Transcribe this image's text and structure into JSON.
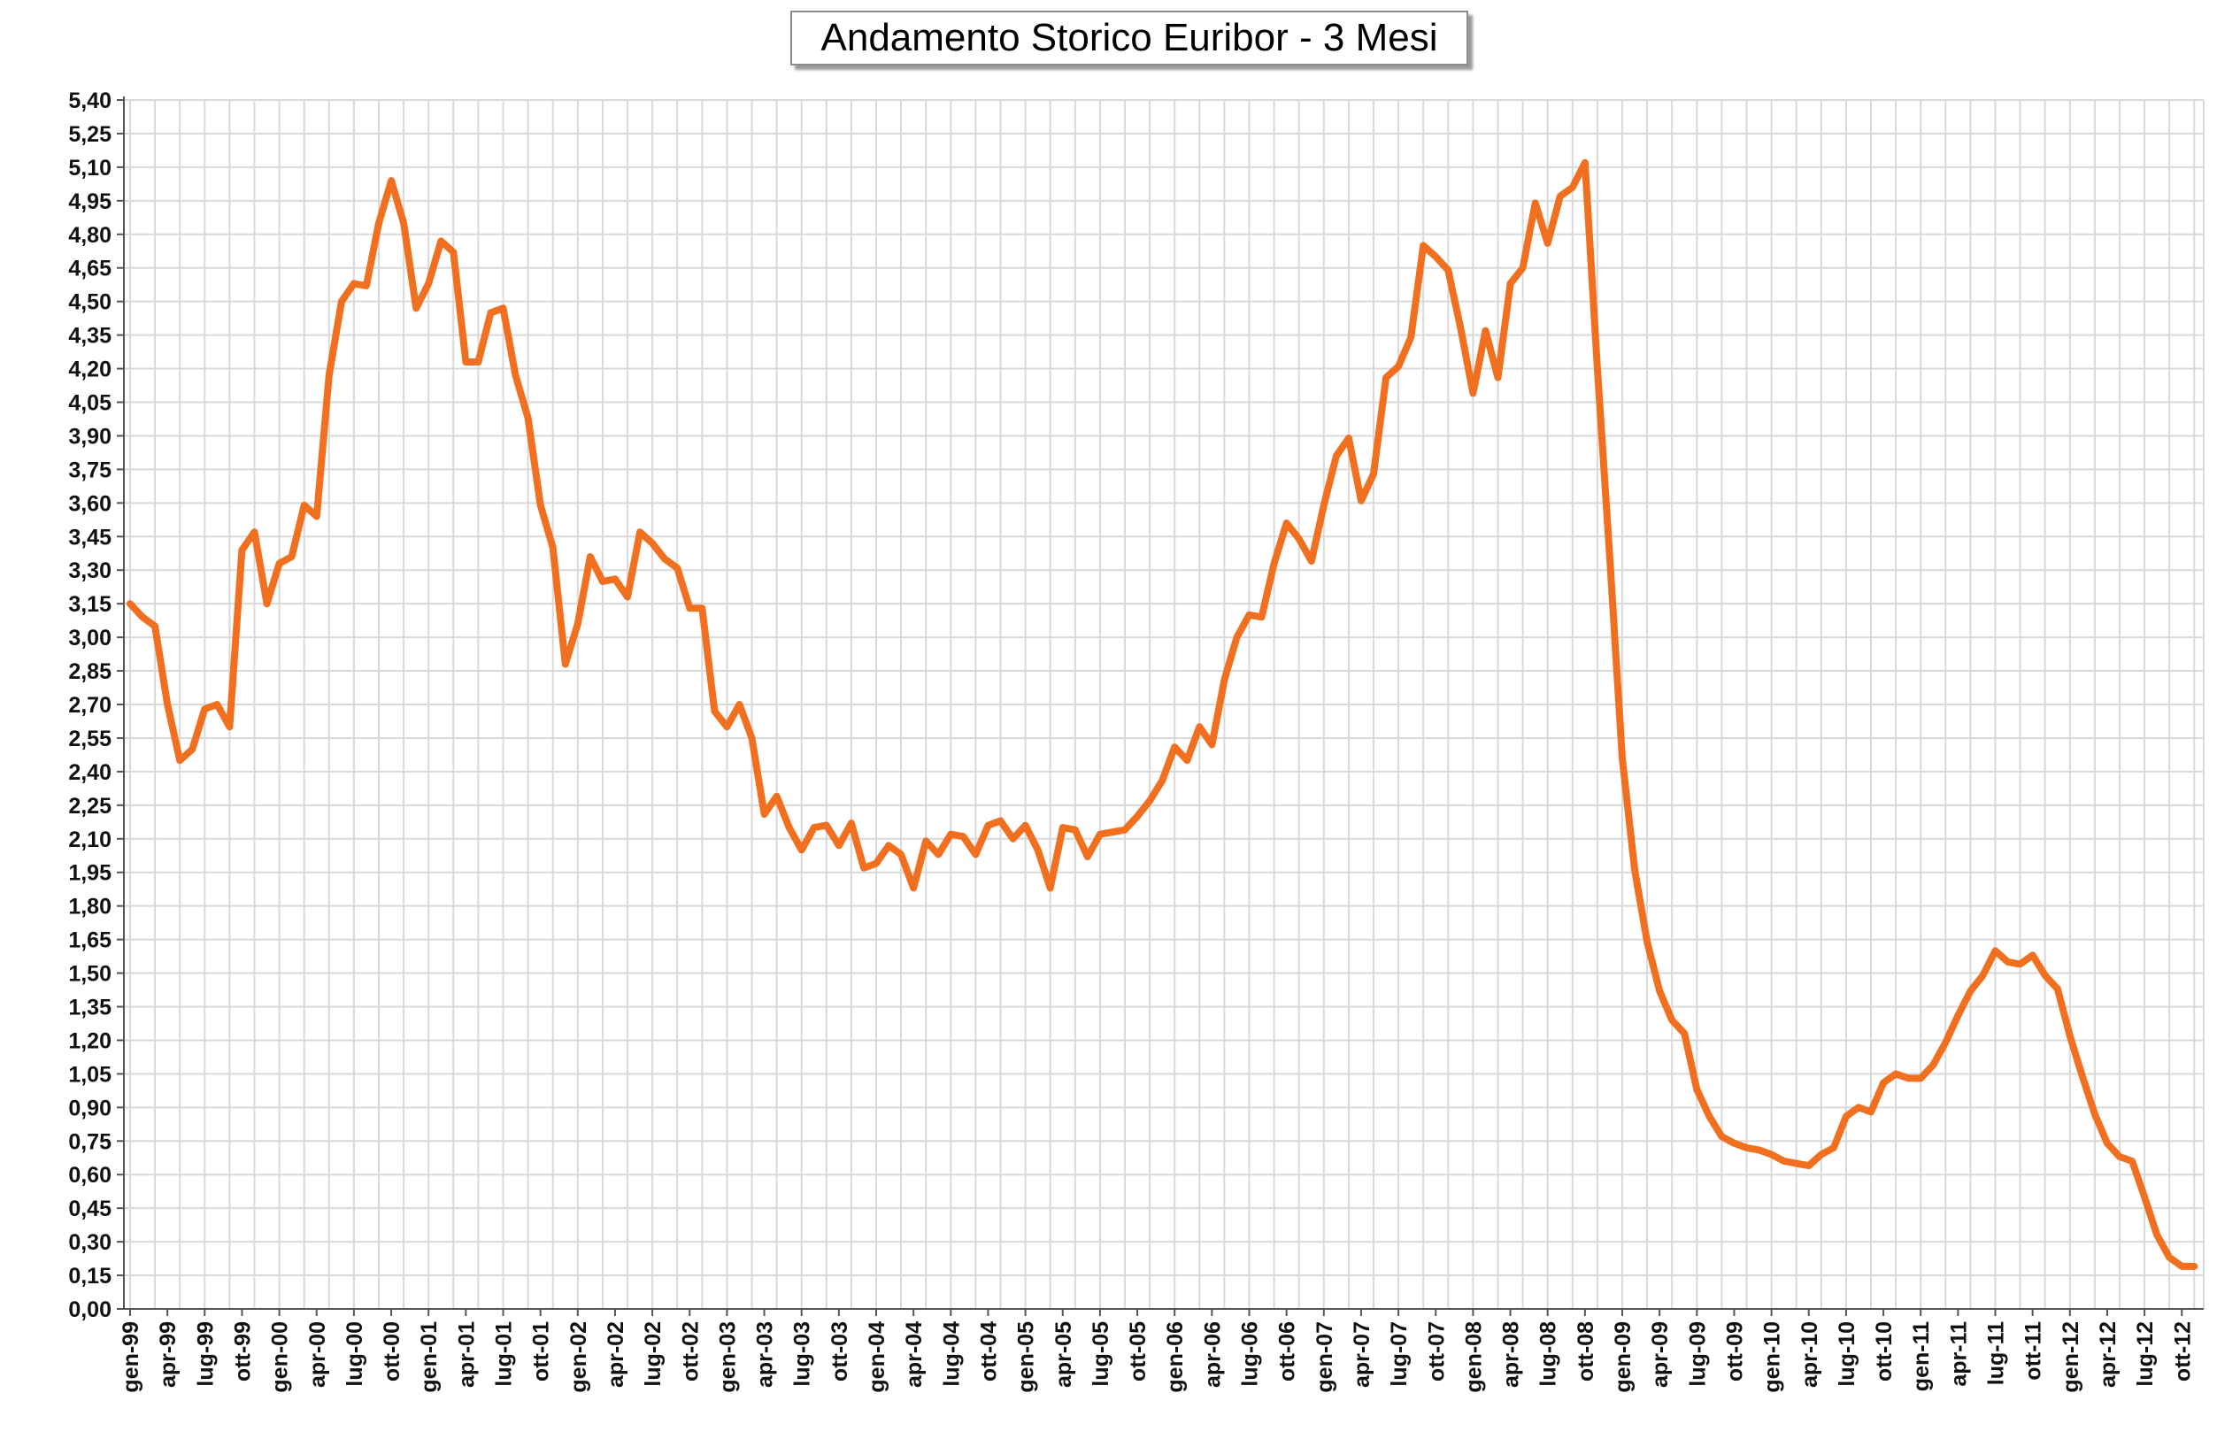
{
  "chart_data": {
    "type": "line",
    "title": "Andamento Storico Euribor - 3 Mesi",
    "xlabel": "",
    "ylabel": "",
    "ylim": [
      0,
      5.4
    ],
    "y_step": 0.15,
    "y_ticks": [
      "0,00",
      "0,15",
      "0,30",
      "0,45",
      "0,60",
      "0,75",
      "0,90",
      "1,05",
      "1,20",
      "1,35",
      "1,50",
      "1,65",
      "1,80",
      "1,95",
      "2,10",
      "2,25",
      "2,40",
      "2,55",
      "2,70",
      "2,85",
      "3,00",
      "3,15",
      "3,30",
      "3,45",
      "3,60",
      "3,75",
      "3,90",
      "4,05",
      "4,20",
      "4,35",
      "4,50",
      "4,65",
      "4,80",
      "4,95",
      "5,10",
      "5,25",
      "5,40"
    ],
    "x_ticks": [
      "gen-99",
      "apr-99",
      "lug-99",
      "ott-99",
      "gen-00",
      "apr-00",
      "lug-00",
      "ott-00",
      "gen-01",
      "apr-01",
      "lug-01",
      "ott-01",
      "gen-02",
      "apr-02",
      "lug-02",
      "ott-02",
      "gen-03",
      "apr-03",
      "lug-03",
      "ott-03",
      "gen-04",
      "apr-04",
      "lug-04",
      "ott-04",
      "gen-05",
      "apr-05",
      "lug-05",
      "ott-05",
      "gen-06",
      "apr-06",
      "lug-06",
      "ott-06",
      "gen-07",
      "apr-07",
      "lug-07",
      "ott-07",
      "gen-08",
      "apr-08",
      "lug-08",
      "ott-08",
      "gen-09",
      "apr-09",
      "lug-09",
      "ott-09",
      "gen-10",
      "apr-10",
      "lug-10",
      "ott-10",
      "gen-11",
      "apr-11",
      "lug-11",
      "ott-11",
      "gen-12",
      "apr-12",
      "lug-12",
      "ott-12"
    ],
    "grid": true,
    "legend": "none",
    "series": [
      {
        "color": "#f07020",
        "x_start": "gen-99",
        "x_interval": "month",
        "values": [
          3.15,
          3.09,
          3.05,
          2.7,
          2.45,
          2.5,
          2.68,
          2.7,
          2.6,
          3.39,
          3.47,
          3.15,
          3.33,
          3.36,
          3.59,
          3.54,
          4.17,
          4.5,
          4.58,
          4.57,
          4.85,
          5.04,
          4.85,
          4.47,
          4.58,
          4.77,
          4.72,
          4.23,
          4.23,
          4.45,
          4.47,
          4.17,
          3.98,
          3.59,
          3.4,
          2.88,
          3.06,
          3.36,
          3.25,
          3.26,
          3.18,
          3.47,
          3.42,
          3.35,
          3.31,
          3.13,
          3.13,
          2.67,
          2.6,
          2.7,
          2.55,
          2.21,
          2.29,
          2.15,
          2.05,
          2.15,
          2.16,
          2.07,
          2.17,
          1.97,
          1.99,
          2.07,
          2.03,
          1.88,
          2.09,
          2.03,
          2.12,
          2.11,
          2.03,
          2.16,
          2.18,
          2.1,
          2.16,
          2.05,
          1.88,
          2.15,
          2.14,
          2.02,
          2.12,
          2.13,
          2.14,
          2.2,
          2.27,
          2.36,
          2.51,
          2.45,
          2.6,
          2.52,
          2.81,
          3.0,
          3.1,
          3.09,
          3.33,
          3.51,
          3.44,
          3.34,
          3.59,
          3.81,
          3.89,
          3.61,
          3.73,
          4.16,
          4.21,
          4.34,
          4.75,
          4.7,
          4.64,
          4.38,
          4.09,
          4.37,
          4.16,
          4.58,
          4.65,
          4.94,
          4.76,
          4.97,
          5.01,
          5.12,
          4.2,
          3.35,
          2.46,
          1.96,
          1.64,
          1.42,
          1.29,
          1.23,
          0.98,
          0.86,
          0.77,
          0.74,
          0.72,
          0.71,
          0.69,
          0.66,
          0.65,
          0.64,
          0.69,
          0.72,
          0.86,
          0.9,
          0.88,
          1.01,
          1.05,
          1.03,
          1.03,
          1.09,
          1.19,
          1.31,
          1.42,
          1.49,
          1.6,
          1.55,
          1.54,
          1.58,
          1.49,
          1.43,
          1.22,
          1.04,
          0.87,
          0.74,
          0.68,
          0.66,
          0.5,
          0.33,
          0.23,
          0.19,
          0.19
        ]
      }
    ]
  }
}
